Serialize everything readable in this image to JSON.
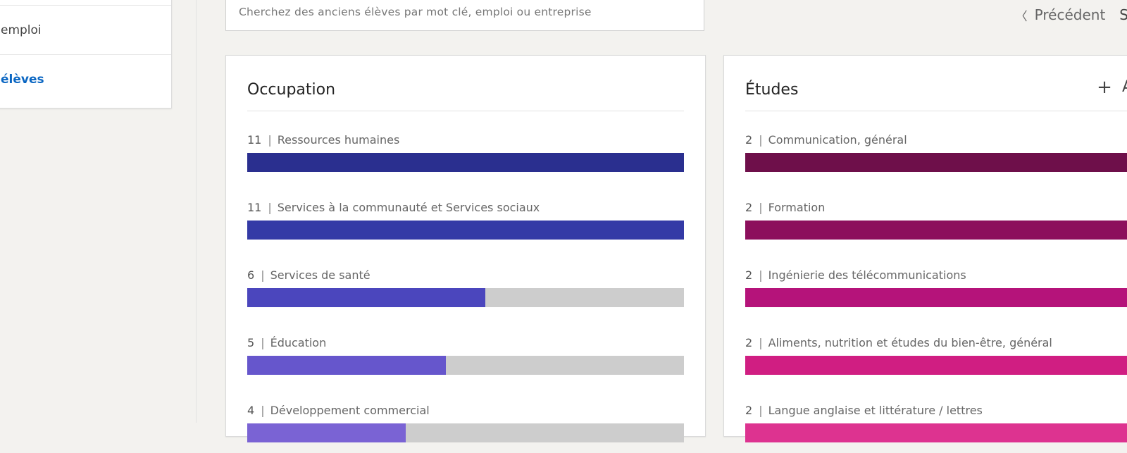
{
  "sidebar": {
    "items": [
      {
        "label": "emploi"
      },
      {
        "label": "élèves",
        "active": true
      }
    ]
  },
  "search": {
    "placeholder": "Cherchez des anciens élèves par mot clé, emploi ou entreprise"
  },
  "pager": {
    "previous_label": "Précédent",
    "next_label": "S"
  },
  "occupation": {
    "title": "Occupation",
    "max": 11,
    "rows": [
      {
        "count": "11",
        "label": "Ressources humaines",
        "value": 11,
        "color": "#2a2f8f"
      },
      {
        "count": "11",
        "label": "Services à la communauté et Services sociaux",
        "value": 11,
        "color": "#343aa6"
      },
      {
        "count": "6",
        "label": "Services de santé",
        "value": 6,
        "color": "#4b46bd"
      },
      {
        "count": "5",
        "label": "Éducation",
        "value": 5,
        "color": "#6656cc"
      },
      {
        "count": "4",
        "label": "Développement commercial",
        "value": 4,
        "color": "#7a63d4"
      }
    ]
  },
  "etudes": {
    "title": "Études",
    "add_label": "A",
    "max": 2,
    "rows": [
      {
        "count": "2",
        "label": "Communication, général",
        "value": 2,
        "color": "#6e0f4a"
      },
      {
        "count": "2",
        "label": "Formation",
        "value": 2,
        "color": "#8c0f5c"
      },
      {
        "count": "2",
        "label": "Ingénierie des télécommunications",
        "value": 2,
        "color": "#b5137a"
      },
      {
        "count": "2",
        "label": "Aliments, nutrition et études du bien-être, général",
        "value": 2,
        "color": "#d01e82"
      },
      {
        "count": "2",
        "label": "Langue anglaise et littérature / lettres",
        "value": 2,
        "color": "#dd3390"
      }
    ]
  }
}
